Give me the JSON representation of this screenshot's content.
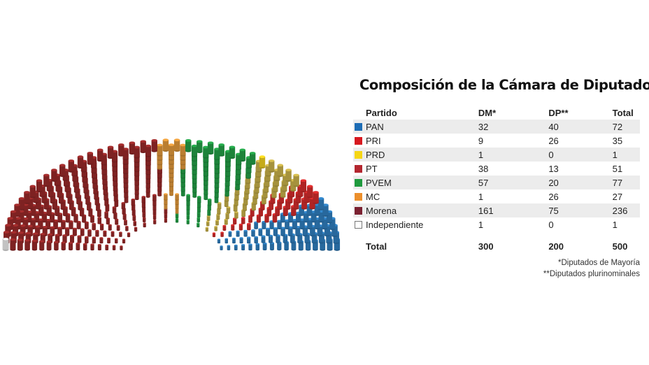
{
  "chart_data": {
    "type": "table",
    "title": "Composición de la Cámara de Diputados",
    "columns": [
      "Partido",
      "DM*",
      "DP**",
      "Total"
    ],
    "rows": [
      {
        "party": "PAN",
        "dm": "32",
        "dp": "40",
        "total": "72",
        "color": "#1e6db5"
      },
      {
        "party": "PRI",
        "dm": "9",
        "dp": "26",
        "total": "35",
        "color": "#d71920"
      },
      {
        "party": "PRD",
        "dm": "1",
        "dp": "0",
        "total": "1",
        "color": "#f5d615"
      },
      {
        "party": "PT",
        "dm": "38",
        "dp": "13",
        "total": "51",
        "color": "#b3262f"
      },
      {
        "party": "PVEM",
        "dm": "57",
        "dp": "20",
        "total": "77",
        "color": "#1f9a3e"
      },
      {
        "party": "MC",
        "dm": "1",
        "dp": "26",
        "total": "27",
        "color": "#ec8f2c"
      },
      {
        "party": "Morena",
        "dm": "161",
        "dp": "75",
        "total": "236",
        "color": "#7b2232"
      },
      {
        "party": "Independiente",
        "dm": "1",
        "dp": "0",
        "total": "1",
        "color": "#ffffff"
      }
    ],
    "total_row": {
      "label": "Total",
      "dm": "300",
      "dp": "200",
      "total": "500"
    },
    "footnotes": [
      "*Diputados de Mayoría",
      "**Diputados plurinominales"
    ],
    "hemicycle_order": [
      "Independiente",
      "Morena",
      "MC",
      "PVEM",
      "PRD",
      "PT",
      "PRI",
      "PAN"
    ],
    "hemicycle_colors": {
      "Independiente": "#eeeeee",
      "Morena": "#9a2a2a",
      "MC": "#e39a3c",
      "PVEM": "#23a047",
      "PRD": "#f0d020",
      "PT": "#c9b24a",
      "PRI": "#d42c2c",
      "PAN": "#2f7fc0"
    }
  }
}
